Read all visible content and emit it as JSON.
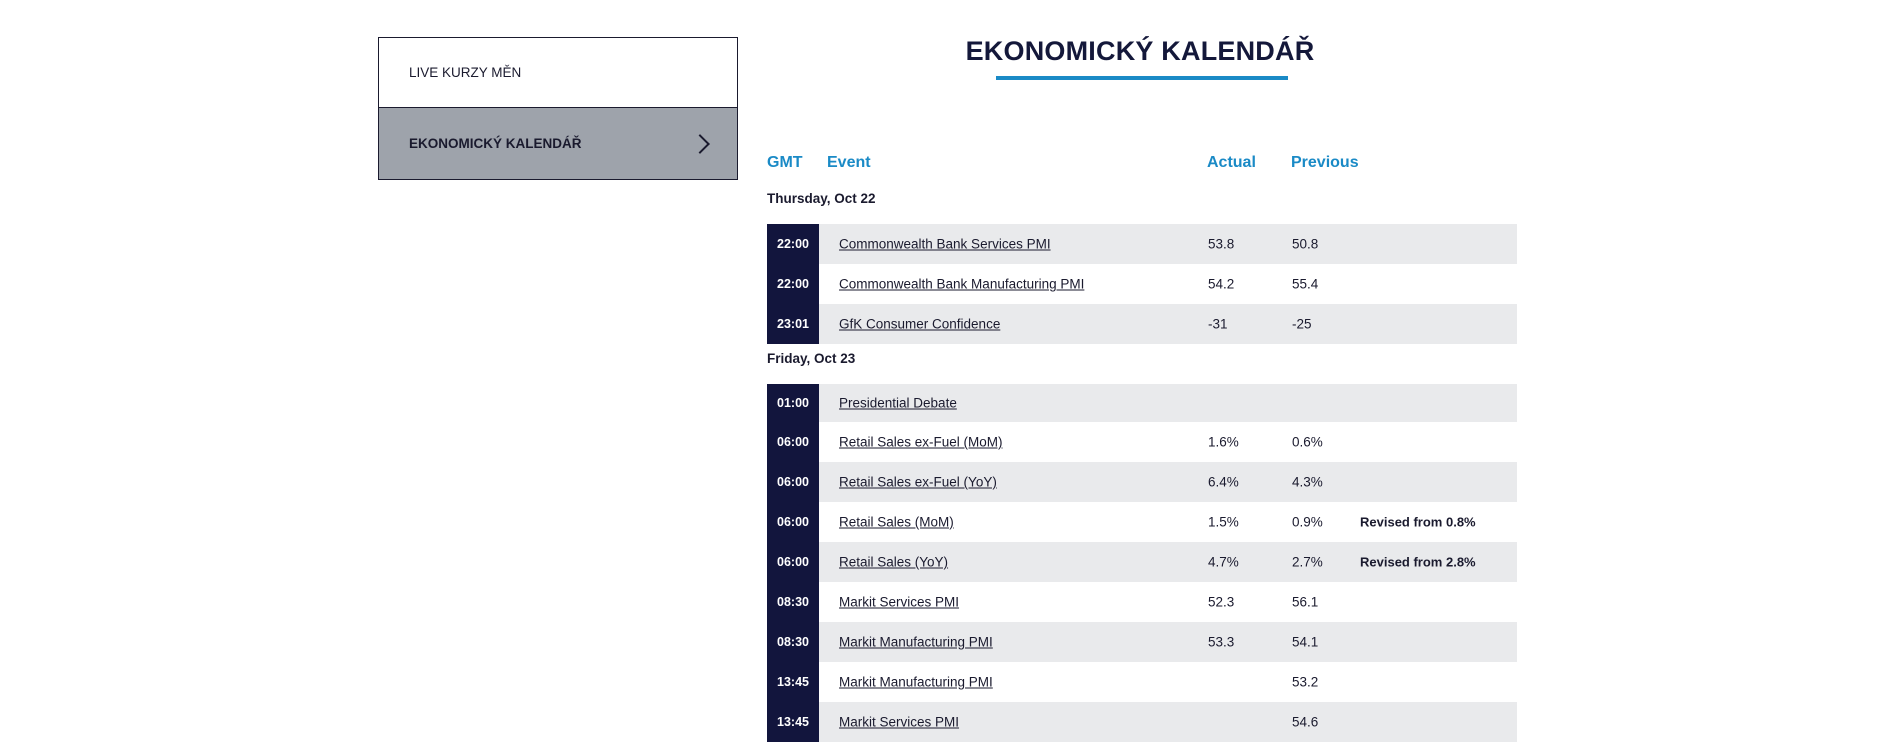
{
  "sidebar": {
    "items": [
      {
        "label": "LIVE KURZY MĚN"
      },
      {
        "label": "EKONOMICKÝ KALENDÁŘ"
      }
    ]
  },
  "page": {
    "title": "EKONOMICKÝ KALENDÁŘ"
  },
  "calendar": {
    "headers": {
      "time": "GMT",
      "event": "Event",
      "actual": "Actual",
      "previous": "Previous"
    },
    "days": [
      {
        "label": "Thursday, Oct 22",
        "rows": [
          {
            "time": "22:00",
            "event": "Commonwealth Bank Services PMI",
            "actual": "53.8",
            "previous": "50.8",
            "note": ""
          },
          {
            "time": "22:00",
            "event": "Commonwealth Bank Manufacturing PMI",
            "actual": "54.2",
            "previous": "55.4",
            "note": ""
          },
          {
            "time": "23:01",
            "event": "GfK Consumer Confidence",
            "actual": "-31",
            "previous": "-25",
            "note": ""
          }
        ]
      },
      {
        "label": "Friday, Oct 23",
        "rows": [
          {
            "time": "01:00",
            "event": "Presidential Debate",
            "actual": "",
            "previous": "",
            "note": ""
          },
          {
            "time": "06:00",
            "event": "Retail Sales ex-Fuel (MoM)",
            "actual": "1.6%",
            "previous": "0.6%",
            "note": ""
          },
          {
            "time": "06:00",
            "event": "Retail Sales ex-Fuel (YoY)",
            "actual": "6.4%",
            "previous": "4.3%",
            "note": ""
          },
          {
            "time": "06:00",
            "event": "Retail Sales (MoM)",
            "actual": "1.5%",
            "previous": "0.9%",
            "note": "Revised from 0.8%"
          },
          {
            "time": "06:00",
            "event": "Retail Sales (YoY)",
            "actual": "4.7%",
            "previous": "2.7%",
            "note": "Revised from 2.8%"
          },
          {
            "time": "08:30",
            "event": "Markit Services PMI",
            "actual": "52.3",
            "previous": "56.1",
            "note": ""
          },
          {
            "time": "08:30",
            "event": "Markit Manufacturing PMI",
            "actual": "53.3",
            "previous": "54.1",
            "note": ""
          },
          {
            "time": "13:45",
            "event": "Markit Manufacturing PMI",
            "actual": "",
            "previous": "53.2",
            "note": ""
          },
          {
            "time": "13:45",
            "event": "Markit Services PMI",
            "actual": "",
            "previous": "54.6",
            "note": ""
          }
        ]
      }
    ]
  }
}
